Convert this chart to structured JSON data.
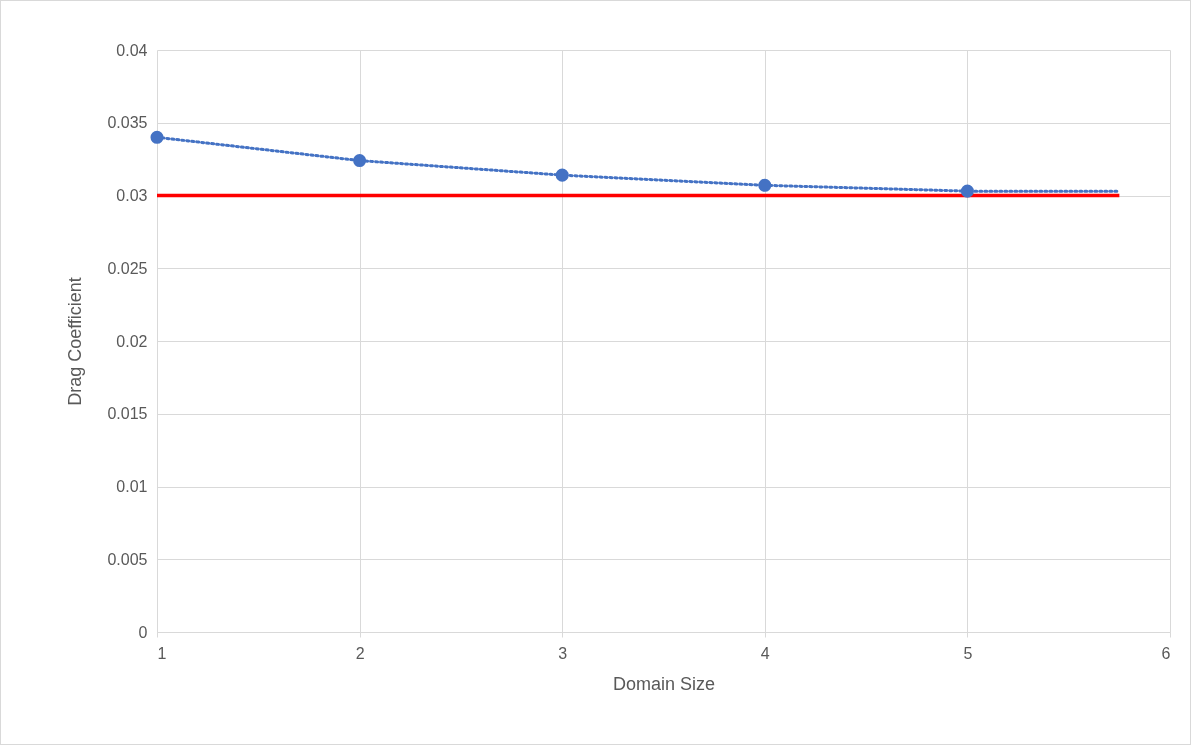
{
  "chart_data": {
    "type": "scatter",
    "xlabel": "Domain Size",
    "ylabel": "Drag Coefficient",
    "xlim": [
      1,
      6
    ],
    "xticks": [
      1,
      2,
      3,
      4,
      5,
      6
    ],
    "ylim": [
      0,
      0.04
    ],
    "yticks": [
      0,
      0.005,
      0.01,
      0.015,
      0.02,
      0.025,
      0.03,
      0.035,
      0.04
    ],
    "grid": true,
    "series": [
      {
        "type": "line",
        "color": "#ff0000",
        "line_style": "solid",
        "marker": "none",
        "x": [
          1,
          5.75
        ],
        "values": [
          0.03,
          0.03
        ]
      },
      {
        "type": "line",
        "color": "#4472c4",
        "line_style": "dotted",
        "marker": "none",
        "x": [
          1,
          2,
          3,
          4,
          5,
          5.75
        ],
        "values": [
          0.034,
          0.0324,
          0.0314,
          0.0307,
          0.0303,
          0.0303
        ]
      },
      {
        "color": "#4472c4",
        "marker": "circle",
        "x": [
          1,
          2,
          3,
          4,
          5
        ],
        "values": [
          0.034,
          0.0324,
          0.0314,
          0.0307,
          0.0303
        ]
      }
    ]
  }
}
